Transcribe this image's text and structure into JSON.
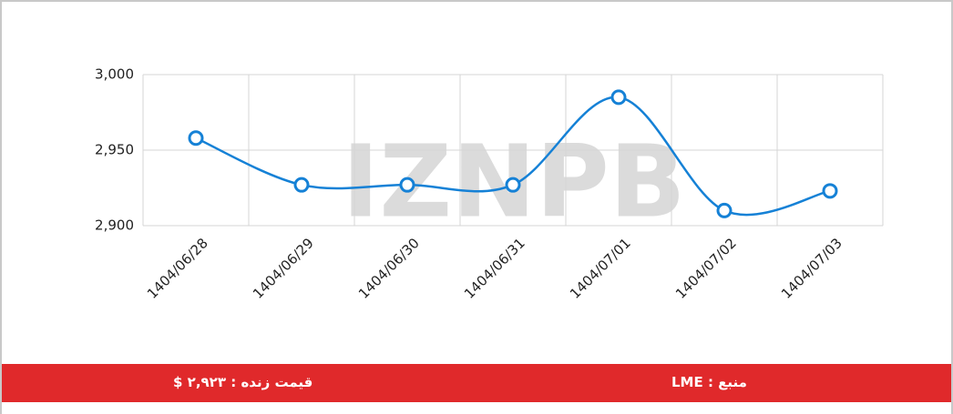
{
  "chart_data": {
    "type": "line",
    "categories": [
      "1404/06/28",
      "1404/06/29",
      "1404/06/30",
      "1404/06/31",
      "1404/07/01",
      "1404/07/02",
      "1404/07/03"
    ],
    "series": [
      {
        "color": "#1581d6",
        "values": [
          2958,
          2927,
          2927,
          2927,
          2985,
          2910,
          2923
        ]
      }
    ],
    "ylim": [
      2900,
      3000
    ],
    "yticks": [
      {
        "value": 2900,
        "label": "2,900"
      },
      {
        "value": 2950,
        "label": "2,950"
      },
      {
        "value": 3000,
        "label": "3,000"
      }
    ],
    "grid": true,
    "smooth": true
  },
  "watermark": "IZNPB",
  "footer": {
    "source": "منبع : LME",
    "live_price": "قیمت زنده : ۲,۹۲۳ $"
  }
}
